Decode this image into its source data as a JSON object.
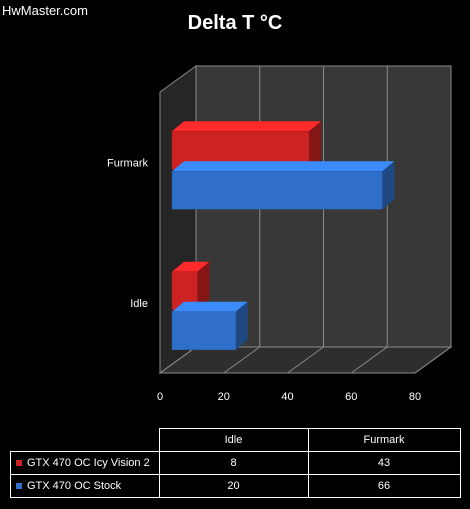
{
  "watermark": "HwMaster.com",
  "chart_data": {
    "type": "bar",
    "orientation": "horizontal",
    "title": "Delta T °C",
    "categories": [
      "Idle",
      "Furmark"
    ],
    "series": [
      {
        "name": "GTX 470 OC Icy Vision 2",
        "values": [
          8,
          43
        ],
        "color": "#cc2222"
      },
      {
        "name": "GTX 470 OC Stock",
        "values": [
          20,
          66
        ],
        "color": "#2f6fc9"
      }
    ],
    "xlim": [
      0,
      80
    ],
    "xticks": [
      0,
      20,
      40,
      60,
      80
    ],
    "xlabel": "",
    "ylabel": "",
    "grid": true,
    "legend": "data table below chart"
  },
  "table": {
    "columns": [
      "Idle",
      "Furmark"
    ],
    "rows": [
      {
        "label": "GTX 470 OC Icy Vision 2",
        "values": [
          "8",
          "43"
        ]
      },
      {
        "label": "GTX 470 OC Stock",
        "values": [
          "20",
          "66"
        ]
      }
    ]
  }
}
